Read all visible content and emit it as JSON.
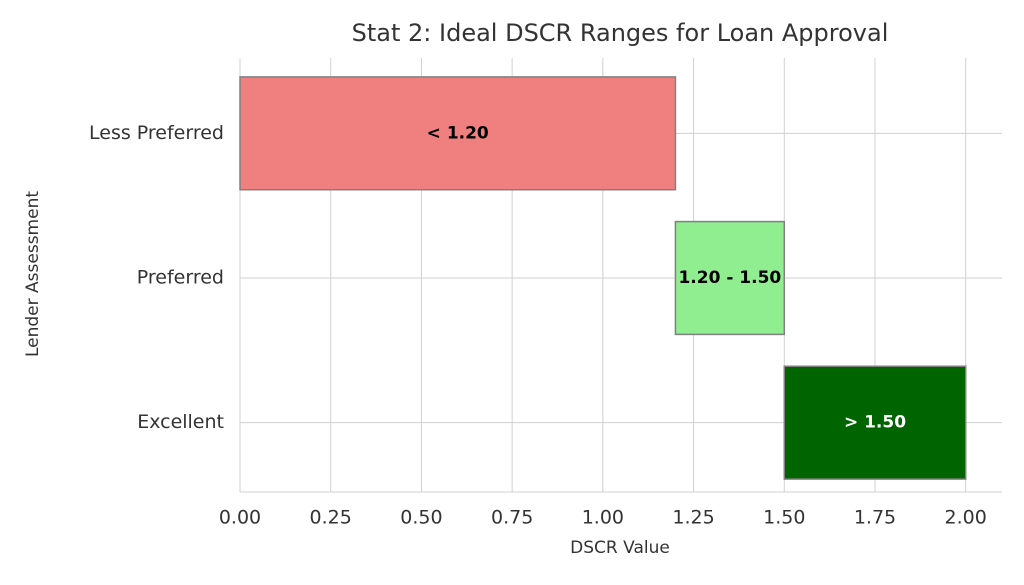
{
  "chart_data": {
    "type": "range-bar",
    "title": "Stat 2: Ideal DSCR Ranges for Loan Approval",
    "x_label": "DSCR Value",
    "y_label": "Lender Assessment",
    "categories": [
      "Less Preferred",
      "Preferred",
      "Excellent"
    ],
    "starts": [
      0,
      1.2,
      1.5
    ],
    "ends": [
      1.2,
      1.5,
      2.0
    ],
    "value_labels": [
      "< 1.20",
      "1.20 - 1.50",
      "> 1.50"
    ],
    "colors": [
      "#f08080",
      "#90ee90",
      "#006400"
    ],
    "label_colors": [
      "#000000",
      "#000000",
      "#ffffff"
    ],
    "xlim": [
      0,
      2.1
    ],
    "xticks": [
      {
        "value": 0,
        "label": "0.00"
      },
      {
        "value": 0.25,
        "label": "0.25"
      },
      {
        "value": 0.5,
        "label": "0.50"
      },
      {
        "value": 0.75,
        "label": "0.75"
      },
      {
        "value": 1,
        "label": "1.00"
      },
      {
        "value": 1.25,
        "label": "1.25"
      },
      {
        "value": 1.5,
        "label": "1.50"
      },
      {
        "value": 1.75,
        "label": "1.75"
      },
      {
        "value": 2,
        "label": "2.00"
      }
    ],
    "grid": true
  }
}
